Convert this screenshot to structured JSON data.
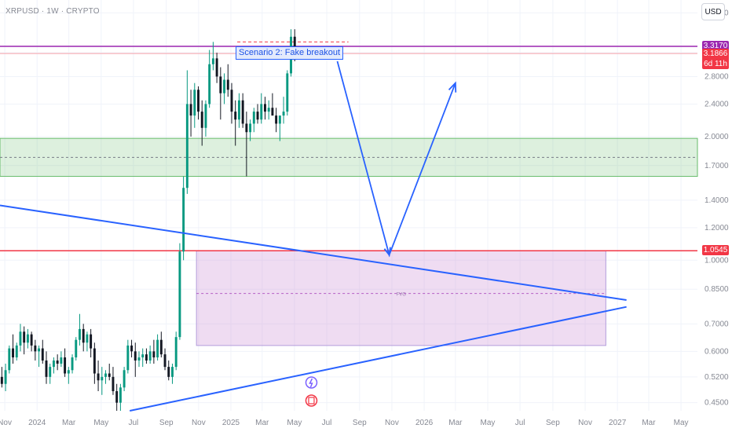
{
  "header": {
    "symbol_line": "XRPUSD · 1W · CRYPTO",
    "currency_button": "USD"
  },
  "annotation": {
    "scenario_label": "Scenario 2: Fake breakout",
    "fvg_label": "FVG"
  },
  "price_tags": {
    "resistance": {
      "value": "3.3170",
      "color": "#9c27b0"
    },
    "last": {
      "value": "3.1866",
      "countdown": "6d 11h",
      "color": "#f23645"
    },
    "support": {
      "value": "1.0545",
      "color": "#f23645"
    }
  },
  "colors": {
    "up_candle": "#089981",
    "down_candle": "#131722",
    "trendline": "#2962ff",
    "fvg_zone": "#ce93d8",
    "demand_zone": "#66bb6a",
    "resistance_line": "#9c27b0",
    "support_line": "#f23645"
  },
  "chart_data": {
    "type": "candlestick",
    "symbol": "XRPUSD",
    "timeframe": "1W",
    "exchange": "CRYPTO",
    "y_axis": {
      "scale": "log",
      "ylim": [
        0.43,
        4.3
      ],
      "ticks": [
        "4.0000",
        "3.2000",
        "2.8000",
        "2.4000",
        "2.0000",
        "1.7000",
        "1.4000",
        "1.2000",
        "1.0000",
        "0.8500",
        "0.7000",
        "0.6000",
        "0.5200",
        "0.4500"
      ]
    },
    "x_axis": {
      "range": [
        "2023-10-23",
        "2027-06-01"
      ],
      "ticks": [
        {
          "label": "Nov",
          "date": "2023-11-01"
        },
        {
          "label": "2024",
          "date": "2024-01-01"
        },
        {
          "label": "Mar",
          "date": "2024-03-01"
        },
        {
          "label": "May",
          "date": "2024-05-01"
        },
        {
          "label": "Jul",
          "date": "2024-07-01"
        },
        {
          "label": "Sep",
          "date": "2024-09-01"
        },
        {
          "label": "Nov",
          "date": "2024-11-01"
        },
        {
          "label": "2025",
          "date": "2025-01-01"
        },
        {
          "label": "Mar",
          "date": "2025-03-01"
        },
        {
          "label": "May",
          "date": "2025-05-01"
        },
        {
          "label": "Jul",
          "date": "2025-07-01"
        },
        {
          "label": "Sep",
          "date": "2025-09-01"
        },
        {
          "label": "Nov",
          "date": "2025-11-01"
        },
        {
          "label": "2026",
          "date": "2026-01-01"
        },
        {
          "label": "Mar",
          "date": "2026-03-01"
        },
        {
          "label": "May",
          "date": "2026-05-01"
        },
        {
          "label": "Jul",
          "date": "2026-07-01"
        },
        {
          "label": "Sep",
          "date": "2026-09-01"
        },
        {
          "label": "Nov",
          "date": "2026-11-01"
        },
        {
          "label": "2027",
          "date": "2027-01-01"
        },
        {
          "label": "Mar",
          "date": "2027-03-01"
        },
        {
          "label": "May",
          "date": "2027-05-01"
        }
      ]
    },
    "candles": {
      "start": "2023-10-23",
      "interval_days": 7,
      "ohlc": [
        [
          0.52,
          0.55,
          0.49,
          0.5
        ],
        [
          0.5,
          0.56,
          0.48,
          0.54
        ],
        [
          0.54,
          0.62,
          0.53,
          0.61
        ],
        [
          0.61,
          0.66,
          0.56,
          0.58
        ],
        [
          0.58,
          0.63,
          0.57,
          0.62
        ],
        [
          0.62,
          0.7,
          0.6,
          0.67
        ],
        [
          0.67,
          0.69,
          0.59,
          0.63
        ],
        [
          0.63,
          0.68,
          0.61,
          0.66
        ],
        [
          0.66,
          0.67,
          0.6,
          0.62
        ],
        [
          0.62,
          0.64,
          0.57,
          0.6
        ],
        [
          0.6,
          0.62,
          0.55,
          0.61
        ],
        [
          0.61,
          0.64,
          0.56,
          0.57
        ],
        [
          0.57,
          0.6,
          0.5,
          0.52
        ],
        [
          0.52,
          0.56,
          0.5,
          0.55
        ],
        [
          0.55,
          0.58,
          0.53,
          0.57
        ],
        [
          0.57,
          0.59,
          0.54,
          0.56
        ],
        [
          0.56,
          0.6,
          0.55,
          0.58
        ],
        [
          0.58,
          0.61,
          0.52,
          0.53
        ],
        [
          0.53,
          0.55,
          0.5,
          0.54
        ],
        [
          0.54,
          0.59,
          0.53,
          0.58
        ],
        [
          0.58,
          0.65,
          0.57,
          0.64
        ],
        [
          0.64,
          0.74,
          0.62,
          0.68
        ],
        [
          0.68,
          0.7,
          0.6,
          0.63
        ],
        [
          0.63,
          0.67,
          0.6,
          0.66
        ],
        [
          0.66,
          0.68,
          0.58,
          0.61
        ],
        [
          0.61,
          0.63,
          0.5,
          0.53
        ],
        [
          0.53,
          0.57,
          0.48,
          0.51
        ],
        [
          0.51,
          0.55,
          0.47,
          0.52
        ],
        [
          0.52,
          0.54,
          0.5,
          0.53
        ],
        [
          0.53,
          0.56,
          0.51,
          0.52
        ],
        [
          0.52,
          0.55,
          0.47,
          0.48
        ],
        [
          0.48,
          0.5,
          0.43,
          0.45
        ],
        [
          0.45,
          0.5,
          0.43,
          0.49
        ],
        [
          0.49,
          0.55,
          0.48,
          0.54
        ],
        [
          0.54,
          0.64,
          0.53,
          0.62
        ],
        [
          0.62,
          0.64,
          0.58,
          0.6
        ],
        [
          0.6,
          0.63,
          0.52,
          0.57
        ],
        [
          0.57,
          0.6,
          0.55,
          0.58
        ],
        [
          0.58,
          0.61,
          0.55,
          0.59
        ],
        [
          0.59,
          0.61,
          0.56,
          0.57
        ],
        [
          0.57,
          0.62,
          0.56,
          0.6
        ],
        [
          0.6,
          0.64,
          0.56,
          0.58
        ],
        [
          0.58,
          0.66,
          0.57,
          0.64
        ],
        [
          0.64,
          0.67,
          0.58,
          0.59
        ],
        [
          0.59,
          0.61,
          0.54,
          0.55
        ],
        [
          0.55,
          0.57,
          0.51,
          0.52
        ],
        [
          0.52,
          0.56,
          0.5,
          0.55
        ],
        [
          0.55,
          0.67,
          0.54,
          0.65
        ],
        [
          0.65,
          1.1,
          0.64,
          1.05
        ],
        [
          1.05,
          1.6,
          1.0,
          1.5
        ],
        [
          1.5,
          2.9,
          1.45,
          2.4
        ],
        [
          2.4,
          2.6,
          2.0,
          2.25
        ],
        [
          2.25,
          2.7,
          2.1,
          2.6
        ],
        [
          2.6,
          2.65,
          2.2,
          2.3
        ],
        [
          2.3,
          2.45,
          1.9,
          2.1
        ],
        [
          2.1,
          2.45,
          2.0,
          2.4
        ],
        [
          2.4,
          3.25,
          2.35,
          3.0
        ],
        [
          3.0,
          3.4,
          2.9,
          3.1
        ],
        [
          3.1,
          3.2,
          2.7,
          2.8
        ],
        [
          2.8,
          2.95,
          2.2,
          2.55
        ],
        [
          2.55,
          2.85,
          2.4,
          2.75
        ],
        [
          2.75,
          3.0,
          2.5,
          2.6
        ],
        [
          2.6,
          2.7,
          2.15,
          2.3
        ],
        [
          2.3,
          2.45,
          1.9,
          2.2
        ],
        [
          2.2,
          2.55,
          2.1,
          2.45
        ],
        [
          2.45,
          2.55,
          2.1,
          2.15
        ],
        [
          2.15,
          2.3,
          1.6,
          2.05
        ],
        [
          2.05,
          2.2,
          1.95,
          2.15
        ],
        [
          2.15,
          2.35,
          2.05,
          2.3
        ],
        [
          2.3,
          2.4,
          2.15,
          2.2
        ],
        [
          2.2,
          2.55,
          2.15,
          2.4
        ],
        [
          2.4,
          2.5,
          2.2,
          2.3
        ],
        [
          2.3,
          2.45,
          2.2,
          2.35
        ],
        [
          2.35,
          2.55,
          2.25,
          2.25
        ],
        [
          2.25,
          2.35,
          2.05,
          2.15
        ],
        [
          2.15,
          2.25,
          1.95,
          2.25
        ],
        [
          2.25,
          2.5,
          2.15,
          2.3
        ],
        [
          2.3,
          2.9,
          2.25,
          2.85
        ],
        [
          2.85,
          3.65,
          2.8,
          3.5
        ],
        [
          3.5,
          3.65,
          3.05,
          3.2
        ]
      ]
    },
    "levels": [
      {
        "name": "resistance",
        "price": 3.317
      },
      {
        "name": "last_price",
        "price": 3.1866
      },
      {
        "name": "support",
        "price": 1.0545
      },
      {
        "name": "demand_zone",
        "top": 1.98,
        "bottom": 1.6,
        "mid": 1.78
      },
      {
        "name": "fvg_zone",
        "top": 1.0545,
        "bottom": 0.62,
        "mid": 0.83,
        "start": "2024-10-28",
        "end": "2026-12-10"
      }
    ],
    "trendlines": [
      {
        "name": "descending",
        "points": [
          [
            "2023-10-23",
            1.36
          ],
          [
            "2027-01-18",
            0.8
          ]
        ]
      },
      {
        "name": "ascending",
        "points": [
          [
            "2024-06-24",
            0.43
          ],
          [
            "2027-01-18",
            0.77
          ]
        ]
      }
    ],
    "projection_path": [
      [
        "2025-07-21",
        3.05
      ],
      [
        "2025-10-27",
        1.03
      ],
      [
        "2026-03-01",
        2.7
      ]
    ]
  }
}
